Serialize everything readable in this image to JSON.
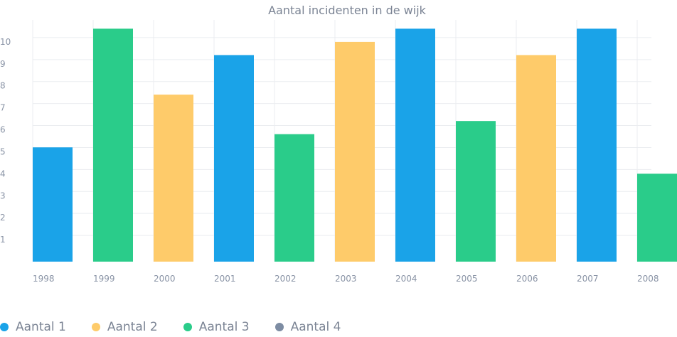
{
  "chart_data": {
    "type": "bar",
    "title": "Aantal incidenten in de wijk",
    "xlabel": "",
    "ylabel": "",
    "categories": [
      "1998",
      "1999",
      "2000",
      "2001",
      "2002",
      "2003",
      "2004",
      "2005",
      "2006",
      "2007",
      "2008"
    ],
    "values": [
      5.2,
      10.6,
      7.6,
      9.4,
      5.8,
      10.0,
      10.6,
      6.4,
      9.4,
      10.6,
      4.0
    ],
    "bar_series": [
      0,
      2,
      1,
      0,
      2,
      1,
      0,
      2,
      1,
      0,
      2
    ],
    "ylim": [
      0,
      11
    ],
    "yticks": [
      1,
      2,
      3,
      4,
      5,
      6,
      7,
      8,
      9,
      10
    ],
    "grid": true,
    "legend_placement": "bottom-left",
    "series": [
      {
        "name": "Aantal 1",
        "color": "#1aa3e8"
      },
      {
        "name": "Aantal 2",
        "color": "#fecb6a"
      },
      {
        "name": "Aantal 3",
        "color": "#2acc8a"
      },
      {
        "name": "Aantal 4",
        "color": "#7d8ca3"
      }
    ]
  }
}
